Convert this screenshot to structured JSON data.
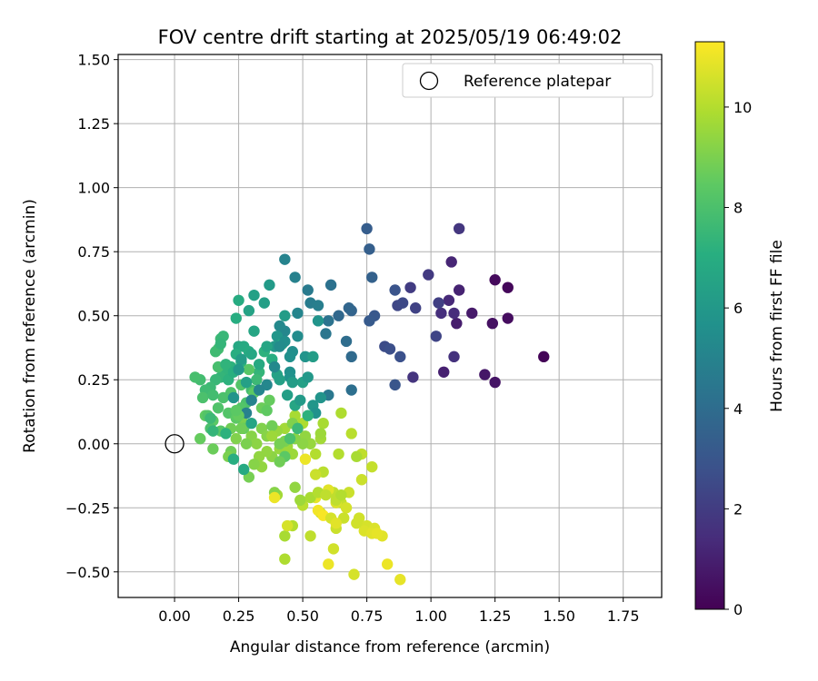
{
  "chart_data": {
    "type": "scatter",
    "title": "FOV centre drift starting at 2025/05/19 06:49:02",
    "xlabel": "Angular distance from reference (arcmin)",
    "ylabel": "Rotation from reference (arcmin)",
    "xlim": [
      -0.22,
      1.9
    ],
    "ylim": [
      -0.6,
      1.52
    ],
    "xticks": [
      0.0,
      0.25,
      0.5,
      0.75,
      1.0,
      1.25,
      1.5,
      1.75
    ],
    "xtick_labels": [
      "0.00",
      "0.25",
      "0.50",
      "0.75",
      "1.00",
      "1.25",
      "1.50",
      "1.75"
    ],
    "yticks": [
      -0.5,
      -0.25,
      0.0,
      0.25,
      0.5,
      0.75,
      1.0,
      1.25,
      1.5
    ],
    "ytick_labels": [
      "−0.50",
      "−0.25",
      "0.00",
      "0.25",
      "0.50",
      "0.75",
      "1.00",
      "1.25",
      "1.50"
    ],
    "grid": true,
    "legend": {
      "position": "top-right",
      "entries": [
        "Reference platepar"
      ]
    },
    "reference_point": {
      "x": 0.0,
      "y": 0.0,
      "label": "Reference platepar"
    },
    "colorbar": {
      "label": "Hours from first FF file",
      "colormap": "viridis",
      "range": [
        0,
        11.3
      ],
      "ticks": [
        0,
        2,
        4,
        6,
        8,
        10
      ],
      "tick_labels": [
        "0",
        "2",
        "4",
        "6",
        "8",
        "10"
      ]
    },
    "points": [
      [
        1.44,
        0.34,
        0.1
      ],
      [
        1.3,
        0.61,
        0.2
      ],
      [
        1.25,
        0.64,
        0.3
      ],
      [
        1.3,
        0.49,
        0.4
      ],
      [
        1.24,
        0.47,
        0.5
      ],
      [
        1.25,
        0.24,
        0.6
      ],
      [
        1.21,
        0.27,
        0.7
      ],
      [
        1.16,
        0.51,
        0.8
      ],
      [
        1.1,
        0.47,
        0.9
      ],
      [
        1.05,
        0.28,
        1.0
      ],
      [
        1.11,
        0.6,
        1.1
      ],
      [
        1.08,
        0.71,
        1.2
      ],
      [
        1.07,
        0.56,
        1.3
      ],
      [
        1.09,
        0.51,
        1.4
      ],
      [
        1.04,
        0.51,
        1.5
      ],
      [
        1.09,
        0.34,
        1.6
      ],
      [
        0.93,
        0.26,
        1.7
      ],
      [
        1.11,
        0.84,
        1.8
      ],
      [
        0.99,
        0.66,
        1.9
      ],
      [
        0.92,
        0.61,
        2.0
      ],
      [
        1.03,
        0.55,
        2.1
      ],
      [
        0.94,
        0.53,
        2.2
      ],
      [
        1.02,
        0.42,
        2.3
      ],
      [
        0.87,
        0.54,
        2.4
      ],
      [
        0.89,
        0.55,
        2.5
      ],
      [
        0.82,
        0.38,
        2.6
      ],
      [
        0.84,
        0.37,
        2.7
      ],
      [
        0.88,
        0.34,
        2.8
      ],
      [
        0.86,
        0.6,
        2.9
      ],
      [
        0.86,
        0.23,
        3.0
      ],
      [
        0.78,
        0.5,
        3.1
      ],
      [
        0.76,
        0.48,
        3.2
      ],
      [
        0.75,
        0.84,
        3.3
      ],
      [
        0.76,
        0.76,
        3.4
      ],
      [
        0.77,
        0.65,
        3.5
      ],
      [
        0.69,
        0.52,
        3.6
      ],
      [
        0.68,
        0.53,
        3.7
      ],
      [
        0.64,
        0.5,
        3.8
      ],
      [
        0.69,
        0.34,
        3.9
      ],
      [
        0.67,
        0.4,
        4.0
      ],
      [
        0.69,
        0.21,
        4.1
      ],
      [
        0.61,
        0.62,
        4.2
      ],
      [
        0.6,
        0.48,
        4.3
      ],
      [
        0.59,
        0.43,
        4.4
      ],
      [
        0.6,
        0.19,
        4.5
      ],
      [
        0.52,
        0.6,
        4.6
      ],
      [
        0.53,
        0.55,
        4.7
      ],
      [
        0.56,
        0.54,
        4.8
      ],
      [
        0.47,
        0.65,
        4.9
      ],
      [
        0.43,
        0.72,
        5.0
      ],
      [
        0.48,
        0.51,
        5.1
      ],
      [
        0.43,
        0.44,
        5.2
      ],
      [
        0.41,
        0.46,
        5.3
      ],
      [
        0.48,
        0.42,
        5.4
      ],
      [
        0.46,
        0.36,
        5.5
      ],
      [
        0.45,
        0.28,
        5.6
      ],
      [
        0.45,
        0.26,
        5.7
      ],
      [
        0.51,
        0.34,
        5.8
      ],
      [
        0.4,
        0.42,
        5.9
      ],
      [
        0.39,
        0.38,
        6.0
      ],
      [
        0.37,
        0.62,
        6.1
      ],
      [
        0.43,
        0.5,
        6.2
      ],
      [
        0.35,
        0.55,
        6.3
      ],
      [
        0.31,
        0.58,
        6.4
      ],
      [
        0.29,
        0.52,
        6.5
      ],
      [
        0.31,
        0.44,
        6.6
      ],
      [
        0.25,
        0.38,
        6.7
      ],
      [
        0.27,
        0.38,
        6.8
      ],
      [
        0.29,
        0.36,
        6.9
      ],
      [
        0.24,
        0.35,
        7.0
      ],
      [
        0.26,
        0.32,
        7.1
      ],
      [
        0.22,
        0.3,
        7.2
      ],
      [
        0.2,
        0.28,
        7.3
      ],
      [
        0.18,
        0.26,
        7.4
      ],
      [
        0.16,
        0.25,
        7.5
      ],
      [
        0.14,
        0.22,
        7.6
      ],
      [
        0.12,
        0.21,
        7.7
      ],
      [
        0.1,
        0.25,
        7.8
      ],
      [
        0.08,
        0.26,
        7.9
      ],
      [
        0.11,
        0.18,
        8.0
      ],
      [
        0.17,
        0.14,
        8.1
      ],
      [
        0.21,
        0.12,
        8.2
      ],
      [
        0.18,
        0.05,
        8.3
      ],
      [
        0.15,
        0.09,
        8.4
      ],
      [
        0.12,
        0.11,
        8.5
      ],
      [
        0.1,
        0.02,
        8.6
      ],
      [
        0.15,
        -0.02,
        8.7
      ],
      [
        0.22,
        -0.03,
        8.8
      ],
      [
        0.29,
        -0.13,
        8.9
      ],
      [
        0.27,
        0.08,
        9.0
      ],
      [
        0.34,
        0.06,
        9.1
      ],
      [
        0.36,
        0.03,
        9.2
      ],
      [
        0.38,
        -0.05,
        9.3
      ],
      [
        0.34,
        -0.09,
        9.4
      ],
      [
        0.41,
        -0.02,
        9.5
      ],
      [
        0.46,
        -0.04,
        9.6
      ],
      [
        0.43,
        0.06,
        9.7
      ],
      [
        0.47,
        0.11,
        9.8
      ],
      [
        0.5,
        0.08,
        9.9
      ],
      [
        0.55,
        -0.04,
        10.0
      ],
      [
        0.58,
        -0.11,
        10.1
      ],
      [
        0.62,
        -0.19,
        10.2
      ],
      [
        0.65,
        -0.23,
        10.3
      ],
      [
        0.68,
        -0.19,
        10.4
      ],
      [
        0.72,
        -0.29,
        10.5
      ],
      [
        0.75,
        -0.32,
        10.6
      ],
      [
        0.78,
        -0.33,
        10.7
      ],
      [
        0.81,
        -0.36,
        10.8
      ],
      [
        0.88,
        -0.53,
        10.9
      ],
      [
        0.6,
        -0.47,
        11.0
      ],
      [
        0.56,
        0.48,
        5.8
      ],
      [
        0.54,
        0.34,
        6.2
      ],
      [
        0.5,
        0.24,
        6.4
      ],
      [
        0.47,
        0.15,
        6.6
      ],
      [
        0.42,
        0.39,
        6.8
      ],
      [
        0.38,
        0.33,
        7.0
      ],
      [
        0.35,
        0.36,
        7.2
      ],
      [
        0.33,
        0.28,
        7.4
      ],
      [
        0.32,
        0.25,
        7.6
      ],
      [
        0.3,
        0.21,
        7.8
      ],
      [
        0.28,
        0.16,
        8.0
      ],
      [
        0.26,
        0.14,
        8.2
      ],
      [
        0.24,
        0.1,
        8.4
      ],
      [
        0.27,
        0.06,
        8.6
      ],
      [
        0.22,
        0.06,
        8.8
      ],
      [
        0.21,
        -0.05,
        9.0
      ],
      [
        0.24,
        0.02,
        9.1
      ],
      [
        0.3,
        0.03,
        9.2
      ],
      [
        0.32,
        0.0,
        9.3
      ],
      [
        0.36,
        -0.03,
        9.4
      ],
      [
        0.4,
        0.05,
        9.5
      ],
      [
        0.44,
        -0.01,
        9.6
      ],
      [
        0.4,
        -0.2,
        9.7
      ],
      [
        0.43,
        -0.36,
        9.8
      ],
      [
        0.43,
        -0.45,
        9.9
      ],
      [
        0.46,
        -0.32,
        10.0
      ],
      [
        0.5,
        -0.24,
        10.1
      ],
      [
        0.53,
        -0.36,
        10.2
      ],
      [
        0.57,
        -0.27,
        10.3
      ],
      [
        0.63,
        -0.33,
        10.4
      ],
      [
        0.62,
        -0.41,
        10.5
      ],
      [
        0.7,
        -0.51,
        10.6
      ],
      [
        0.74,
        -0.34,
        10.7
      ],
      [
        0.77,
        -0.35,
        10.8
      ],
      [
        0.79,
        -0.35,
        10.9
      ],
      [
        0.83,
        -0.47,
        11.0
      ],
      [
        0.56,
        -0.26,
        11.1
      ],
      [
        0.58,
        -0.28,
        11.2
      ],
      [
        0.51,
        -0.06,
        11.0
      ],
      [
        0.55,
        -0.21,
        10.9
      ],
      [
        0.6,
        -0.18,
        10.8
      ],
      [
        0.63,
        -0.23,
        10.7
      ],
      [
        0.67,
        -0.25,
        10.6
      ],
      [
        0.71,
        -0.31,
        10.5
      ],
      [
        0.73,
        -0.14,
        10.4
      ],
      [
        0.77,
        -0.09,
        10.3
      ],
      [
        0.73,
        -0.04,
        10.2
      ],
      [
        0.69,
        0.04,
        10.1
      ],
      [
        0.64,
        -0.04,
        10.0
      ],
      [
        0.65,
        0.12,
        9.9
      ],
      [
        0.58,
        0.08,
        9.8
      ],
      [
        0.57,
        0.02,
        9.7
      ],
      [
        0.57,
        0.04,
        9.6
      ],
      [
        0.53,
        0.0,
        9.5
      ],
      [
        0.51,
        0.03,
        9.4
      ],
      [
        0.5,
        0.0,
        9.3
      ],
      [
        0.47,
        0.02,
        9.2
      ],
      [
        0.46,
        0.08,
        9.1
      ],
      [
        0.43,
        0.01,
        9.0
      ],
      [
        0.41,
        0.0,
        8.9
      ],
      [
        0.38,
        0.07,
        8.8
      ],
      [
        0.34,
        0.14,
        8.7
      ],
      [
        0.37,
        0.17,
        8.6
      ],
      [
        0.36,
        0.13,
        8.5
      ],
      [
        0.31,
        0.2,
        8.4
      ],
      [
        0.29,
        0.29,
        8.3
      ],
      [
        0.26,
        0.23,
        8.2
      ],
      [
        0.22,
        0.2,
        8.1
      ],
      [
        0.19,
        0.18,
        8.0
      ],
      [
        0.17,
        0.3,
        7.9
      ],
      [
        0.17,
        0.37,
        7.8
      ],
      [
        0.16,
        0.36,
        7.7
      ],
      [
        0.18,
        0.41,
        7.6
      ],
      [
        0.19,
        0.42,
        7.5
      ],
      [
        0.18,
        0.39,
        7.4
      ],
      [
        0.2,
        0.31,
        7.3
      ],
      [
        0.21,
        0.25,
        7.2
      ],
      [
        0.23,
        0.28,
        7.1
      ],
      [
        0.24,
        0.49,
        7.0
      ],
      [
        0.25,
        0.56,
        6.9
      ],
      [
        0.33,
        0.31,
        6.8
      ],
      [
        0.3,
        0.35,
        6.7
      ],
      [
        0.36,
        0.38,
        6.6
      ],
      [
        0.4,
        0.27,
        6.5
      ],
      [
        0.41,
        0.25,
        6.4
      ],
      [
        0.44,
        0.19,
        6.3
      ],
      [
        0.46,
        0.24,
        6.2
      ],
      [
        0.49,
        0.17,
        6.1
      ],
      [
        0.52,
        0.26,
        6.0
      ],
      [
        0.54,
        0.15,
        5.9
      ],
      [
        0.57,
        0.18,
        5.8
      ],
      [
        0.55,
        0.12,
        5.7
      ],
      [
        0.45,
        0.34,
        5.6
      ],
      [
        0.43,
        0.4,
        5.5
      ],
      [
        0.41,
        0.38,
        5.4
      ],
      [
        0.39,
        0.3,
        5.3
      ],
      [
        0.36,
        0.23,
        5.2
      ],
      [
        0.33,
        0.21,
        5.1
      ],
      [
        0.3,
        0.17,
        5.0
      ],
      [
        0.28,
        0.12,
        4.9
      ],
      [
        0.52,
        0.11,
        7.2
      ],
      [
        0.48,
        0.06,
        7.6
      ],
      [
        0.45,
        0.02,
        8.0
      ],
      [
        0.43,
        -0.05,
        8.4
      ],
      [
        0.41,
        -0.07,
        8.8
      ],
      [
        0.39,
        -0.19,
        9.2
      ],
      [
        0.47,
        -0.17,
        9.4
      ],
      [
        0.49,
        -0.22,
        9.6
      ],
      [
        0.53,
        -0.21,
        9.8
      ],
      [
        0.56,
        -0.19,
        10.0
      ],
      [
        0.63,
        -0.22,
        10.2
      ],
      [
        0.66,
        -0.29,
        10.4
      ],
      [
        0.61,
        -0.29,
        10.6
      ],
      [
        0.63,
        -0.31,
        10.8
      ],
      [
        0.39,
        -0.21,
        11.0
      ],
      [
        0.44,
        -0.32,
        10.6
      ],
      [
        0.55,
        -0.12,
        10.4
      ],
      [
        0.59,
        -0.2,
        10.2
      ],
      [
        0.65,
        -0.2,
        10.0
      ],
      [
        0.71,
        -0.05,
        9.8
      ],
      [
        0.38,
        0.03,
        9.6
      ],
      [
        0.33,
        -0.05,
        9.4
      ],
      [
        0.31,
        -0.08,
        9.2
      ],
      [
        0.28,
        0.0,
        9.0
      ],
      [
        0.26,
        0.06,
        8.8
      ],
      [
        0.25,
        0.11,
        8.6
      ],
      [
        0.24,
        0.13,
        8.4
      ],
      [
        0.13,
        0.11,
        8.2
      ],
      [
        0.14,
        0.06,
        8.0
      ],
      [
        0.15,
        0.19,
        7.8
      ],
      [
        0.14,
        0.1,
        7.6
      ],
      [
        0.15,
        0.05,
        7.4
      ],
      [
        0.2,
        0.04,
        7.2
      ],
      [
        0.23,
        -0.06,
        7.0
      ],
      [
        0.27,
        -0.1,
        6.8
      ],
      [
        0.3,
        0.08,
        6.6
      ],
      [
        0.28,
        0.24,
        6.4
      ],
      [
        0.26,
        0.33,
        6.2
      ],
      [
        0.25,
        0.29,
        6.0
      ],
      [
        0.23,
        0.18,
        5.8
      ]
    ]
  }
}
